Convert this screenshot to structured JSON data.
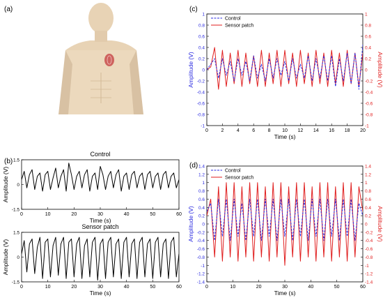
{
  "panel_labels": {
    "a": "(a)",
    "b": "(b)",
    "c": "(c)",
    "d": "(d)"
  },
  "colors": {
    "control": "#2a2ae0",
    "sensor": "#e01e1e",
    "black": "#000000",
    "skin": "#ecd9bd",
    "skin_shade": "#d8c1a3",
    "patch": "#c94d4d"
  },
  "chart_data": [
    {
      "id": "b_control",
      "type": "line",
      "title": "Control",
      "xlabel": "Time (s)",
      "ylabel": "Amplitude (V)",
      "xlim": [
        0,
        60
      ],
      "ylim": [
        -1.5,
        1.5
      ],
      "xticks": [
        0,
        10,
        20,
        30,
        40,
        50,
        60
      ],
      "yticks": [
        -1.5,
        0,
        1.5
      ],
      "series": [
        {
          "color": "#000000",
          "x": [
            0,
            1,
            2,
            3,
            4,
            5,
            6,
            7,
            8,
            9,
            10,
            11,
            12,
            13,
            14,
            15,
            16,
            17,
            18,
            19,
            20,
            21,
            22,
            23,
            24,
            25,
            26,
            27,
            28,
            29,
            30,
            31,
            32,
            33,
            34,
            35,
            36,
            37,
            38,
            39,
            40,
            41,
            42,
            43,
            44,
            45,
            46,
            47,
            48,
            49,
            50,
            51,
            52,
            53,
            54,
            55,
            56,
            57,
            58,
            59,
            60
          ],
          "y": [
            0.3,
            0.8,
            -0.2,
            0.6,
            0.9,
            -0.3,
            0.5,
            0.7,
            -0.4,
            0.6,
            0.8,
            -0.3,
            0.4,
            1.0,
            -0.2,
            0.5,
            0.9,
            -0.4,
            1.3,
            0.6,
            -0.3,
            0.5,
            0.8,
            -0.2,
            0.6,
            0.9,
            -0.4,
            0.5,
            0.7,
            -0.3,
            1.1,
            0.6,
            -0.3,
            0.5,
            0.8,
            -0.2,
            0.6,
            0.9,
            -0.4,
            0.5,
            0.7,
            -0.3,
            0.6,
            0.8,
            -0.2,
            0.5,
            0.7,
            -0.3,
            0.6,
            0.8,
            -0.2,
            0.5,
            0.7,
            -0.3,
            0.6,
            0.8,
            -0.2,
            0.5,
            0.7,
            -0.2,
            0.3
          ]
        }
      ]
    },
    {
      "id": "b_sensor",
      "type": "line",
      "title": "Sensor patch",
      "xlabel": "Time (s)",
      "ylabel": "Amplitude (V)",
      "xlim": [
        0,
        60
      ],
      "ylim": [
        -1.5,
        1.5
      ],
      "xticks": [
        0,
        10,
        20,
        30,
        40,
        50,
        60
      ],
      "yticks": [
        -1.5,
        0,
        1.5
      ],
      "series": [
        {
          "color": "#000000",
          "x": [
            0,
            1,
            2,
            3,
            4,
            5,
            6,
            7,
            8,
            9,
            10,
            11,
            12,
            13,
            14,
            15,
            16,
            17,
            18,
            19,
            20,
            21,
            22,
            23,
            24,
            25,
            26,
            27,
            28,
            29,
            30,
            31,
            32,
            33,
            34,
            35,
            36,
            37,
            38,
            39,
            40,
            41,
            42,
            43,
            44,
            45,
            46,
            47,
            48,
            49,
            50,
            51,
            52,
            53,
            54,
            55,
            56,
            57,
            58,
            59,
            60
          ],
          "y": [
            0.2,
            1.0,
            -0.9,
            0.8,
            1.1,
            -1.0,
            0.6,
            1.2,
            -1.3,
            0.9,
            1.1,
            -1.2,
            0.7,
            1.2,
            -1.1,
            0.8,
            1.2,
            -1.3,
            0.9,
            1.1,
            -1.2,
            0.8,
            1.2,
            -1.3,
            0.7,
            1.1,
            -1.2,
            0.9,
            1.2,
            -1.4,
            0.8,
            1.1,
            -1.3,
            0.9,
            1.2,
            -1.2,
            0.8,
            1.1,
            -1.3,
            0.9,
            1.2,
            -1.2,
            0.8,
            1.1,
            -1.3,
            0.9,
            1.2,
            -1.2,
            0.8,
            1.1,
            -1.3,
            0.9,
            1.2,
            -1.2,
            0.8,
            1.1,
            -1.3,
            0.9,
            1.2,
            -1.2,
            0.2
          ]
        }
      ]
    },
    {
      "id": "c",
      "type": "line",
      "xlabel": "Time (s)",
      "ylabel": "Amplitude (V)",
      "ylabel_right": "Amplitude (V)",
      "xlim": [
        0,
        20
      ],
      "ylim": [
        -1,
        1
      ],
      "xticks": [
        0,
        2,
        4,
        6,
        8,
        10,
        12,
        14,
        16,
        18,
        20
      ],
      "yticks": [
        -1,
        -0.8,
        -0.6,
        -0.4,
        -0.2,
        0,
        0.2,
        0.4,
        0.6,
        0.8,
        1
      ],
      "legend": "top-left",
      "series": [
        {
          "name": "Control",
          "color": "#2a2ae0",
          "style": "dashed",
          "x": [
            0,
            0.5,
            1,
            1.5,
            2,
            2.5,
            3,
            3.5,
            4,
            4.5,
            5,
            5.5,
            6,
            6.5,
            7,
            7.5,
            8,
            8.5,
            9,
            9.5,
            10,
            10.5,
            11,
            11.5,
            12,
            12.5,
            13,
            13.5,
            14,
            14.5,
            15,
            15.5,
            16,
            16.5,
            17,
            17.5,
            18,
            18.5,
            19,
            19.5,
            20
          ],
          "y": [
            0,
            0.1,
            0.2,
            -0.15,
            0.2,
            -0.1,
            0.15,
            -0.2,
            0.2,
            -0.1,
            0.15,
            -0.2,
            0.25,
            -0.15,
            0.1,
            -0.2,
            0.2,
            -0.15,
            0.2,
            -0.1,
            0.15,
            -0.2,
            0.2,
            -0.15,
            0.1,
            -0.15,
            0.25,
            -0.2,
            0.2,
            -0.15,
            0.25,
            -0.2,
            0.25,
            -0.3,
            0.2,
            -0.2,
            0.3,
            -0.25,
            0.3,
            -0.35,
            0.45
          ]
        },
        {
          "name": "Sensor patch",
          "color": "#e01e1e",
          "style": "solid",
          "x": [
            0,
            0.5,
            1,
            1.5,
            2,
            2.5,
            3,
            3.5,
            4,
            4.5,
            5,
            5.5,
            6,
            6.5,
            7,
            7.5,
            8,
            8.5,
            9,
            9.5,
            10,
            10.5,
            11,
            11.5,
            12,
            12.5,
            13,
            13.5,
            14,
            14.5,
            15,
            15.5,
            16,
            16.5,
            17,
            17.5,
            18,
            18.5,
            19,
            19.5,
            20
          ],
          "y": [
            0,
            0.05,
            0.4,
            -0.35,
            0.35,
            -0.3,
            0.3,
            -0.25,
            0.35,
            -0.3,
            0.3,
            -0.25,
            0.25,
            -0.3,
            0.35,
            -0.3,
            0.3,
            -0.25,
            0.35,
            -0.3,
            0.35,
            -0.25,
            0.3,
            -0.3,
            0.35,
            -0.25,
            0.3,
            -0.3,
            0.35,
            -0.25,
            0.3,
            -0.3,
            0.35,
            -0.25,
            0.3,
            -0.3,
            0.35,
            -0.25,
            0.3,
            -0.3,
            0.3
          ]
        }
      ]
    },
    {
      "id": "d",
      "type": "line",
      "xlabel": "Time (s)",
      "ylabel": "Amplitude (V)",
      "ylabel_right": "Amplitude (V)",
      "xlim": [
        0,
        60
      ],
      "ylim": [
        -1.4,
        1.4
      ],
      "xticks": [
        0,
        10,
        20,
        30,
        40,
        50,
        60
      ],
      "yticks": [
        -1.4,
        -1.2,
        -1,
        -0.8,
        -0.6,
        -0.4,
        -0.2,
        0,
        0.2,
        0.4,
        0.6,
        0.8,
        1,
        1.2,
        1.4
      ],
      "legend": "top-left",
      "series": [
        {
          "name": "Control",
          "color": "#2a2ae0",
          "style": "dashed",
          "x": [
            0,
            1.5,
            3,
            4.5,
            6,
            7.5,
            9,
            10.5,
            12,
            13.5,
            15,
            16.5,
            18,
            19.5,
            21,
            22.5,
            24,
            25.5,
            27,
            28.5,
            30,
            31.5,
            33,
            34.5,
            36,
            37.5,
            39,
            40.5,
            42,
            43.5,
            45,
            46.5,
            48,
            49.5,
            51,
            52.5,
            54,
            55.5,
            57,
            58.5,
            60
          ],
          "y": [
            0.3,
            0.5,
            -0.4,
            0.6,
            -0.3,
            0.6,
            -0.4,
            0.6,
            -0.3,
            0.5,
            -0.4,
            0.6,
            -0.3,
            0.6,
            -0.4,
            0.6,
            -0.3,
            0.6,
            -0.4,
            0.6,
            -0.3,
            0.6,
            -0.4,
            0.6,
            -0.3,
            0.6,
            -0.4,
            0.6,
            -0.3,
            0.6,
            -0.4,
            0.6,
            -0.3,
            0.6,
            -0.4,
            0.6,
            -0.3,
            0.6,
            -0.4,
            0.5,
            0.2
          ]
        },
        {
          "name": "Sensor patch",
          "color": "#e01e1e",
          "style": "solid",
          "x": [
            0,
            1.5,
            3,
            4.5,
            6,
            7.5,
            9,
            10.5,
            12,
            13.5,
            15,
            16.5,
            18,
            19.5,
            21,
            22.5,
            24,
            25.5,
            27,
            28.5,
            30,
            31.5,
            33,
            34.5,
            36,
            37.5,
            39,
            40.5,
            42,
            43.5,
            45,
            46.5,
            48,
            49.5,
            51,
            52.5,
            54,
            55.5,
            57,
            58.5,
            60
          ],
          "y": [
            0.2,
            0.6,
            -0.8,
            0.9,
            -0.9,
            1.0,
            -0.8,
            1.0,
            -0.9,
            0.9,
            -0.8,
            1.0,
            -0.9,
            1.0,
            -0.8,
            0.9,
            -0.9,
            1.0,
            -0.8,
            1.0,
            -1.0,
            0.9,
            -0.8,
            1.0,
            -0.9,
            1.0,
            -0.8,
            0.9,
            -0.9,
            1.0,
            -0.8,
            1.0,
            -0.9,
            0.9,
            -0.8,
            1.0,
            -0.9,
            1.0,
            -0.8,
            0.9,
            0.3
          ]
        }
      ]
    }
  ]
}
